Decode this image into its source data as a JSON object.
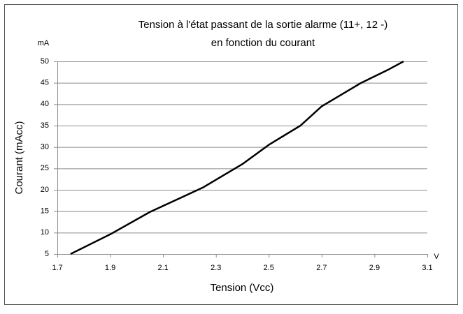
{
  "chart_data": {
    "type": "line",
    "title": [
      "Tension à l'état passant de la sortie alarme (11+, 12 -)",
      "en fonction du courant"
    ],
    "x_label": "Tension (Vcc)",
    "y_label": "Courant (mAcc)",
    "x_unit": "V",
    "y_unit": "mA",
    "x": [
      1.75,
      1.9,
      2.05,
      2.25,
      2.4,
      2.5,
      2.62,
      2.7,
      2.85,
      2.95,
      3.01
    ],
    "series": [
      {
        "color": "#000000",
        "values": [
          5,
          9.6,
          14.8,
          20.5,
          26,
          30.5,
          35,
          39.5,
          45,
          48,
          50
        ]
      }
    ],
    "xlim": [
      1.7,
      3.1
    ],
    "xticks": [
      1.7,
      1.9,
      2.1,
      2.3,
      2.5,
      2.7,
      2.9,
      3.1
    ],
    "ylim": [
      5,
      50
    ],
    "yticks": [
      5,
      10,
      15,
      20,
      25,
      30,
      35,
      40,
      45,
      50
    ],
    "grid": true
  }
}
